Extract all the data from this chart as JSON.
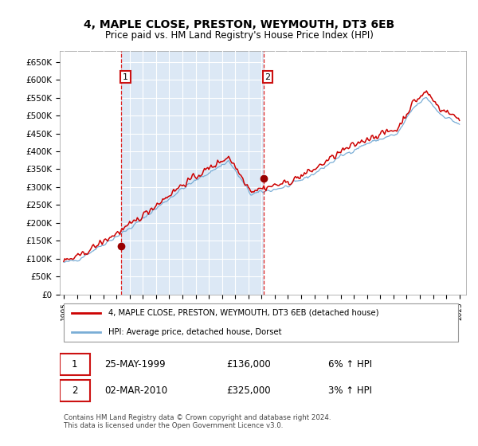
{
  "title": "4, MAPLE CLOSE, PRESTON, WEYMOUTH, DT3 6EB",
  "subtitle": "Price paid vs. HM Land Registry's House Price Index (HPI)",
  "background_color": "#ffffff",
  "plot_bg_color": "#dce8f5",
  "shade_bg_color": "#dce8f5",
  "grid_color": "#ffffff",
  "ylim": [
    0,
    680000
  ],
  "yticks": [
    0,
    50000,
    100000,
    150000,
    200000,
    250000,
    300000,
    350000,
    400000,
    450000,
    500000,
    550000,
    600000,
    650000
  ],
  "ytick_labels": [
    "£0",
    "£50K",
    "£100K",
    "£150K",
    "£200K",
    "£250K",
    "£300K",
    "£350K",
    "£400K",
    "£450K",
    "£500K",
    "£550K",
    "£600K",
    "£650K"
  ],
  "sale1_year": 1999.38,
  "sale1_price": 136000,
  "sale1_label": "25-MAY-1999",
  "sale1_amount": "£136,000",
  "sale1_hpi": "6% ↑ HPI",
  "sale2_year": 2010.17,
  "sale2_price": 325000,
  "sale2_label": "02-MAR-2010",
  "sale2_amount": "£325,000",
  "sale2_hpi": "3% ↑ HPI",
  "legend_line1": "4, MAPLE CLOSE, PRESTON, WEYMOUTH, DT3 6EB (detached house)",
  "legend_line2": "HPI: Average price, detached house, Dorset",
  "footer": "Contains HM Land Registry data © Crown copyright and database right 2024.\nThis data is licensed under the Open Government Licence v3.0.",
  "red_line_color": "#cc0000",
  "blue_line_color": "#7aaed6",
  "vline_color": "#dd2222",
  "marker_color": "#990000",
  "xlim_min": 1994.7,
  "xlim_max": 2025.5,
  "hpi_x": [
    1995.0,
    1995.08,
    1995.17,
    1995.25,
    1995.33,
    1995.42,
    1995.5,
    1995.58,
    1995.67,
    1995.75,
    1995.83,
    1995.92,
    1996.0,
    1996.08,
    1996.17,
    1996.25,
    1996.33,
    1996.42,
    1996.5,
    1996.58,
    1996.67,
    1996.75,
    1996.83,
    1996.92,
    1997.0,
    1997.08,
    1997.17,
    1997.25,
    1997.33,
    1997.42,
    1997.5,
    1997.58,
    1997.67,
    1997.75,
    1997.83,
    1997.92,
    1998.0,
    1998.08,
    1998.17,
    1998.25,
    1998.33,
    1998.42,
    1998.5,
    1998.58,
    1998.67,
    1998.75,
    1998.83,
    1998.92,
    1999.0,
    1999.08,
    1999.17,
    1999.25,
    1999.33,
    1999.42,
    1999.5,
    1999.58,
    1999.67,
    1999.75,
    1999.83,
    1999.92,
    2000.0,
    2000.08,
    2000.17,
    2000.25,
    2000.33,
    2000.42,
    2000.5,
    2000.58,
    2000.67,
    2000.75,
    2000.83,
    2000.92,
    2001.0,
    2001.08,
    2001.17,
    2001.25,
    2001.33,
    2001.42,
    2001.5,
    2001.58,
    2001.67,
    2001.75,
    2001.83,
    2001.92,
    2002.0,
    2002.08,
    2002.17,
    2002.25,
    2002.33,
    2002.42,
    2002.5,
    2002.58,
    2002.67,
    2002.75,
    2002.83,
    2002.92,
    2003.0,
    2003.08,
    2003.17,
    2003.25,
    2003.33,
    2003.42,
    2003.5,
    2003.58,
    2003.67,
    2003.75,
    2003.83,
    2003.92,
    2004.0,
    2004.08,
    2004.17,
    2004.25,
    2004.33,
    2004.42,
    2004.5,
    2004.58,
    2004.67,
    2004.75,
    2004.83,
    2004.92,
    2005.0,
    2005.08,
    2005.17,
    2005.25,
    2005.33,
    2005.42,
    2005.5,
    2005.58,
    2005.67,
    2005.75,
    2005.83,
    2005.92,
    2006.0,
    2006.08,
    2006.17,
    2006.25,
    2006.33,
    2006.42,
    2006.5,
    2006.58,
    2006.67,
    2006.75,
    2006.83,
    2006.92,
    2007.0,
    2007.08,
    2007.17,
    2007.25,
    2007.33,
    2007.42,
    2007.5,
    2007.58,
    2007.67,
    2007.75,
    2007.83,
    2007.92,
    2008.0,
    2008.08,
    2008.17,
    2008.25,
    2008.33,
    2008.42,
    2008.5,
    2008.58,
    2008.67,
    2008.75,
    2008.83,
    2008.92,
    2009.0,
    2009.08,
    2009.17,
    2009.25,
    2009.33,
    2009.42,
    2009.5,
    2009.58,
    2009.67,
    2009.75,
    2009.83,
    2009.92,
    2010.0,
    2010.08,
    2010.17,
    2010.25,
    2010.33,
    2010.42,
    2010.5,
    2010.58,
    2010.67,
    2010.75,
    2010.83,
    2010.92,
    2011.0,
    2011.08,
    2011.17,
    2011.25,
    2011.33,
    2011.42,
    2011.5,
    2011.58,
    2011.67,
    2011.75,
    2011.83,
    2011.92,
    2012.0,
    2012.08,
    2012.17,
    2012.25,
    2012.33,
    2012.42,
    2012.5,
    2012.58,
    2012.67,
    2012.75,
    2012.83,
    2012.92,
    2013.0,
    2013.08,
    2013.17,
    2013.25,
    2013.33,
    2013.42,
    2013.5,
    2013.58,
    2013.67,
    2013.75,
    2013.83,
    2013.92,
    2014.0,
    2014.08,
    2014.17,
    2014.25,
    2014.33,
    2014.42,
    2014.5,
    2014.58,
    2014.67,
    2014.75,
    2014.83,
    2014.92,
    2015.0,
    2015.08,
    2015.17,
    2015.25,
    2015.33,
    2015.42,
    2015.5,
    2015.58,
    2015.67,
    2015.75,
    2015.83,
    2015.92,
    2016.0,
    2016.08,
    2016.17,
    2016.25,
    2016.33,
    2016.42,
    2016.5,
    2016.58,
    2016.67,
    2016.75,
    2016.83,
    2016.92,
    2017.0,
    2017.08,
    2017.17,
    2017.25,
    2017.33,
    2017.42,
    2017.5,
    2017.58,
    2017.67,
    2017.75,
    2017.83,
    2017.92,
    2018.0,
    2018.08,
    2018.17,
    2018.25,
    2018.33,
    2018.42,
    2018.5,
    2018.58,
    2018.67,
    2018.75,
    2018.83,
    2018.92,
    2019.0,
    2019.08,
    2019.17,
    2019.25,
    2019.33,
    2019.42,
    2019.5,
    2019.58,
    2019.67,
    2019.75,
    2019.83,
    2019.92,
    2020.0,
    2020.08,
    2020.17,
    2020.25,
    2020.33,
    2020.42,
    2020.5,
    2020.58,
    2020.67,
    2020.75,
    2020.83,
    2020.92,
    2021.0,
    2021.08,
    2021.17,
    2021.25,
    2021.33,
    2021.42,
    2021.5,
    2021.58,
    2021.67,
    2021.75,
    2021.83,
    2021.92,
    2022.0,
    2022.08,
    2022.17,
    2022.25,
    2022.33,
    2022.42,
    2022.5,
    2022.58,
    2022.67,
    2022.75,
    2022.83,
    2022.92,
    2023.0,
    2023.08,
    2023.17,
    2023.25,
    2023.33,
    2023.42,
    2023.5,
    2023.58,
    2023.67,
    2023.75,
    2023.83,
    2023.92,
    2024.0,
    2024.08,
    2024.17,
    2024.25,
    2024.33,
    2024.42,
    2024.5,
    2024.58,
    2024.67,
    2024.75,
    2024.83,
    2024.92,
    2025.0
  ]
}
